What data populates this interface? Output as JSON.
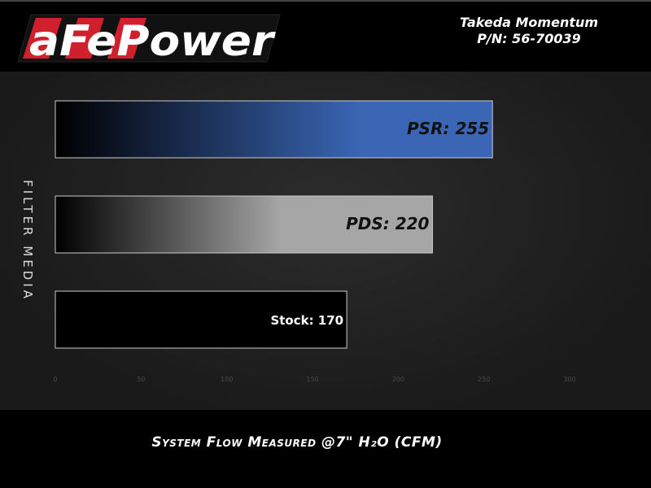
{
  "header": {
    "logo_text": "aFePower",
    "title": "Takeda Momentum",
    "part_number": "P/N: 56-70039"
  },
  "colors": {
    "psr": "#3a66b5",
    "pds": "#a6a6a6",
    "stock": "#000000",
    "logo_red": "#d0202e"
  },
  "chart_data": {
    "type": "bar",
    "orientation": "horizontal",
    "categories": [
      "PSR",
      "PDS",
      "Stock"
    ],
    "values": [
      255,
      220,
      170
    ],
    "data_labels": [
      "PSR: 255",
      "PDS: 220",
      "Stock: 170"
    ],
    "xlabel": "System Flow Measured @7\" H₂O (CFM)",
    "ylabel": "FILTER MEDIA",
    "xlim": [
      0,
      300
    ],
    "xticks": [
      0,
      50,
      100,
      150,
      200,
      250,
      300
    ],
    "grid": false
  }
}
